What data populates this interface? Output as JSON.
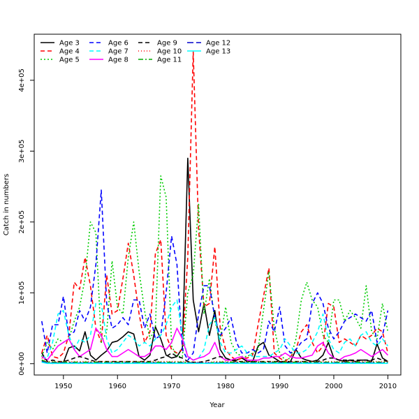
{
  "chart_data": {
    "type": "line",
    "title": "",
    "xlabel": "Year",
    "ylabel": "Catch in numbers",
    "xlim": [
      1944.6,
      2012.4
    ],
    "ylim": [
      -16000,
      465000
    ],
    "x_ticks": [
      1950,
      1960,
      1970,
      1980,
      1990,
      2000,
      2010
    ],
    "x_tick_labels": [
      "1950",
      "1960",
      "1970",
      "1980",
      "1990",
      "2000",
      "2010"
    ],
    "y_ticks": [
      0,
      100000,
      200000,
      300000,
      400000
    ],
    "y_tick_labels": [
      "0e+00",
      "1e+05",
      "2e+05",
      "3e+05",
      "4e+05"
    ],
    "grid": false,
    "legend_position": "top-left",
    "x": [
      1946,
      1947,
      1948,
      1949,
      1950,
      1951,
      1952,
      1953,
      1954,
      1955,
      1956,
      1957,
      1958,
      1959,
      1960,
      1961,
      1962,
      1963,
      1964,
      1965,
      1966,
      1967,
      1968,
      1969,
      1970,
      1971,
      1972,
      1973,
      1974,
      1975,
      1976,
      1977,
      1978,
      1979,
      1980,
      1981,
      1982,
      1983,
      1984,
      1985,
      1986,
      1987,
      1988,
      1989,
      1990,
      1991,
      1992,
      1993,
      1994,
      1995,
      1996,
      1997,
      1998,
      1999,
      2000,
      2001,
      2002,
      2003,
      2004,
      2005,
      2006,
      2007,
      2008,
      2009,
      2010
    ],
    "series": [
      {
        "name": "Age 3",
        "color": "#000000",
        "dash": "",
        "values": [
          5000,
          1000,
          500,
          1000,
          1500,
          22000,
          25000,
          18000,
          45000,
          12000,
          5000,
          12000,
          18000,
          30000,
          32000,
          38000,
          45000,
          42000,
          10000,
          5000,
          12000,
          52000,
          35000,
          12000,
          8000,
          10000,
          22000,
          290000,
          90000,
          45000,
          85000,
          40000,
          75000,
          20000,
          8000,
          5000,
          5000,
          8000,
          3000,
          3000,
          25000,
          30000,
          12000,
          8000,
          3000,
          1000,
          3000,
          20000,
          8000,
          5000,
          3000,
          5000,
          12000,
          30000,
          8000,
          5000,
          3000,
          5000,
          3000,
          5000,
          5000,
          3000,
          28000,
          8000,
          3000
        ]
      },
      {
        "name": "Age 4",
        "color": "#ff0000",
        "dash": "6,4",
        "values": [
          15000,
          40000,
          10000,
          8000,
          15000,
          40000,
          115000,
          105000,
          150000,
          110000,
          50000,
          30000,
          125000,
          70000,
          75000,
          120000,
          170000,
          125000,
          70000,
          30000,
          45000,
          155000,
          175000,
          40000,
          20000,
          15000,
          20000,
          150000,
          440000,
          190000,
          80000,
          85000,
          165000,
          50000,
          20000,
          10000,
          5000,
          8000,
          8000,
          12000,
          55000,
          95000,
          135000,
          15000,
          8000,
          3000,
          10000,
          20000,
          45000,
          55000,
          30000,
          15000,
          25000,
          85000,
          80000,
          30000,
          35000,
          30000,
          25000,
          40000,
          35000,
          40000,
          50000,
          45000,
          15000
        ]
      },
      {
        "name": "Age 5",
        "color": "#00cc00",
        "dash": "2,3",
        "values": [
          10000,
          30000,
          20000,
          35000,
          30000,
          35000,
          60000,
          80000,
          120000,
          200000,
          185000,
          30000,
          45000,
          145000,
          80000,
          70000,
          150000,
          200000,
          130000,
          75000,
          35000,
          50000,
          265000,
          235000,
          25000,
          10000,
          10000,
          100000,
          125000,
          225000,
          70000,
          120000,
          60000,
          35000,
          80000,
          30000,
          15000,
          10000,
          10000,
          15000,
          20000,
          75000,
          130000,
          50000,
          15000,
          5000,
          8000,
          35000,
          90000,
          115000,
          90000,
          80000,
          40000,
          30000,
          90000,
          90000,
          60000,
          75000,
          65000,
          50000,
          110000,
          45000,
          35000,
          85000,
          45000
        ]
      },
      {
        "name": "Age 6",
        "color": "#0000ff",
        "dash": "6,4",
        "values": [
          60000,
          15000,
          55000,
          55000,
          95000,
          40000,
          45000,
          75000,
          60000,
          80000,
          140000,
          245000,
          85000,
          50000,
          55000,
          65000,
          55000,
          90000,
          90000,
          50000,
          70000,
          35000,
          40000,
          100000,
          180000,
          140000,
          20000,
          5000,
          15000,
          70000,
          110000,
          110000,
          65000,
          40000,
          50000,
          65000,
          30000,
          15000,
          15000,
          20000,
          15000,
          20000,
          60000,
          45000,
          80000,
          25000,
          15000,
          20000,
          30000,
          35000,
          85000,
          100000,
          85000,
          50000,
          35000,
          45000,
          60000,
          65000,
          70000,
          65000,
          60000,
          75000,
          30000,
          40000,
          75000
        ]
      },
      {
        "name": "Age 7",
        "color": "#00ffff",
        "dash": "6,4",
        "values": [
          10000,
          8000,
          30000,
          70000,
          75000,
          40000,
          20000,
          35000,
          30000,
          40000,
          85000,
          85000,
          35000,
          15000,
          20000,
          30000,
          40000,
          35000,
          25000,
          30000,
          25000,
          35000,
          40000,
          55000,
          80000,
          90000,
          40000,
          10000,
          5000,
          8000,
          20000,
          55000,
          65000,
          30000,
          15000,
          15000,
          20000,
          25000,
          15000,
          10000,
          10000,
          10000,
          10000,
          15000,
          20000,
          35000,
          25000,
          15000,
          15000,
          20000,
          30000,
          45000,
          70000,
          35000,
          20000,
          15000,
          30000,
          35000,
          25000,
          40000,
          45000,
          30000,
          25000,
          35000,
          25000
        ]
      },
      {
        "name": "Age 8",
        "color": "#ff00ff",
        "dash": "",
        "values": [
          10000,
          5000,
          15000,
          25000,
          30000,
          35000,
          20000,
          10000,
          15000,
          20000,
          50000,
          40000,
          20000,
          10000,
          10000,
          15000,
          20000,
          15000,
          10000,
          10000,
          15000,
          25000,
          25000,
          20000,
          30000,
          50000,
          35000,
          10000,
          5000,
          8000,
          10000,
          15000,
          30000,
          10000,
          5000,
          5000,
          8000,
          10000,
          5000,
          5000,
          5000,
          8000,
          8000,
          10000,
          10000,
          15000,
          10000,
          8000,
          8000,
          10000,
          12000,
          25000,
          30000,
          15000,
          8000,
          5000,
          10000,
          12000,
          15000,
          20000,
          15000,
          10000,
          15000,
          20000,
          12000
        ]
      },
      {
        "name": "Age 9",
        "color": "#000000",
        "dash": "6,4",
        "values": [
          15000,
          3000,
          5000,
          3000,
          3000,
          5000,
          8000,
          10000,
          8000,
          5000,
          3000,
          3000,
          3000,
          3000,
          3000,
          3000,
          3000,
          3000,
          3000,
          3000,
          3000,
          5000,
          8000,
          10000,
          15000,
          10000,
          8000,
          3000,
          2000,
          2000,
          3000,
          5000,
          8000,
          10000,
          8000,
          5000,
          3000,
          3000,
          3000,
          3000,
          3000,
          3000,
          3000,
          3000,
          3000,
          3000,
          3000,
          3000,
          3000,
          3000,
          3000,
          3000,
          5000,
          8000,
          8000,
          5000,
          5000,
          5000,
          5000,
          5000,
          5000,
          5000,
          8000,
          5000,
          3000
        ]
      },
      {
        "name": "Age 10",
        "color": "#ff0000",
        "dash": "1,3",
        "values": [
          8000,
          3000,
          3000,
          3000,
          3000,
          3000,
          3000,
          3000,
          3000,
          3000,
          3000,
          3000,
          3000,
          3000,
          3000,
          3000,
          3000,
          3000,
          3000,
          3000,
          3000,
          3000,
          3000,
          3000,
          3000,
          3000,
          3000,
          3000,
          2000,
          2000,
          2000,
          2000,
          3000,
          3000,
          3000,
          3000,
          3000,
          3000,
          3000,
          3000,
          3000,
          3000,
          3000,
          3000,
          3000,
          3000,
          3000,
          3000,
          3000,
          3000,
          3000,
          3000,
          3000,
          3000,
          3000,
          3000,
          3000,
          3000,
          3000,
          3000,
          3000,
          3000,
          3000,
          3000,
          3000
        ]
      },
      {
        "name": "Age 11",
        "color": "#00aa00",
        "dash": "7,3,2,3",
        "values": [
          5000,
          2000,
          2000,
          2000,
          2000,
          2000,
          2000,
          2000,
          2000,
          2000,
          2000,
          2000,
          2000,
          2000,
          2000,
          2000,
          2000,
          2000,
          2000,
          2000,
          2000,
          2000,
          2000,
          2000,
          2000,
          2000,
          2000,
          2000,
          1000,
          1000,
          1000,
          1000,
          2000,
          2000,
          2000,
          2000,
          2000,
          2000,
          2000,
          2000,
          2000,
          2000,
          2000,
          2000,
          2000,
          2000,
          2000,
          2000,
          2000,
          2000,
          2000,
          2000,
          2000,
          2000,
          2000,
          2000,
          2000,
          2000,
          2000,
          2000,
          2000,
          2000,
          2000,
          2000,
          2000
        ]
      },
      {
        "name": "Age 12",
        "color": "#0000cc",
        "dash": "9,4",
        "values": [
          3000,
          1000,
          1000,
          1000,
          1000,
          1000,
          1000,
          1000,
          1000,
          1000,
          1000,
          1000,
          1000,
          1000,
          1000,
          1000,
          1000,
          1000,
          1000,
          1000,
          1000,
          1000,
          1000,
          1000,
          1000,
          1000,
          1000,
          1000,
          1000,
          1000,
          1000,
          1000,
          1000,
          1000,
          1000,
          1000,
          1000,
          1000,
          1000,
          1000,
          1000,
          1000,
          1000,
          1000,
          1000,
          1000,
          1000,
          1000,
          1000,
          1000,
          1000,
          1000,
          1000,
          1000,
          1000,
          1000,
          1000,
          1000,
          1000,
          1000,
          1000,
          1000,
          1000,
          1000,
          1000
        ]
      },
      {
        "name": "Age 13",
        "color": "#00ffff",
        "dash": "",
        "values": [
          2000,
          500,
          500,
          500,
          500,
          500,
          500,
          500,
          500,
          500,
          500,
          500,
          500,
          500,
          500,
          500,
          500,
          500,
          500,
          500,
          500,
          500,
          500,
          500,
          500,
          500,
          500,
          500,
          500,
          500,
          500,
          500,
          500,
          500,
          500,
          500,
          500,
          500,
          500,
          500,
          500,
          500,
          500,
          500,
          500,
          500,
          500,
          500,
          500,
          500,
          500,
          500,
          500,
          500,
          500,
          500,
          500,
          500,
          500,
          500,
          500,
          500,
          500,
          500,
          500
        ]
      }
    ]
  }
}
